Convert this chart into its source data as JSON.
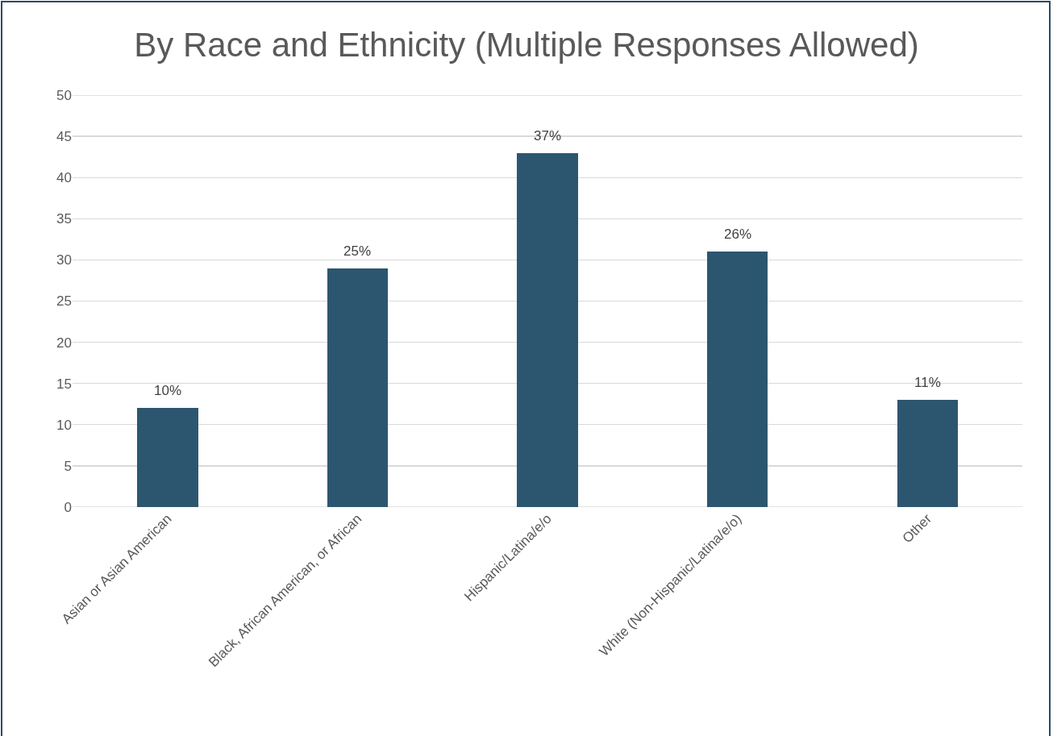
{
  "chart_data": {
    "type": "bar",
    "title": "By Race and Ethnicity (Multiple Responses Allowed)",
    "categories": [
      "Asian or Asian American",
      "Black, African American, or African",
      "Hispanic/Latina/e/o",
      "White (Non-Hispanic/Latina/e/o)",
      "Other"
    ],
    "values": [
      12,
      29,
      43,
      31,
      13
    ],
    "annotations": [
      {
        "text": "10%",
        "x": "Asian or Asian American",
        "y": 12
      },
      {
        "text": "25%",
        "x": "Black, African American, or African",
        "y": 29
      },
      {
        "text": "37%",
        "x": "Hispanic/Latina/e/o",
        "y": 43
      },
      {
        "text": "26%",
        "x": "White (Non-Hispanic/Latina/e/o)",
        "y": 31
      },
      {
        "text": "11%",
        "x": "Other",
        "y": 13
      }
    ],
    "color": "#2c5670",
    "ylim": [
      0,
      50
    ],
    "yticks": [
      0,
      5,
      10,
      15,
      20,
      25,
      30,
      35,
      40,
      45,
      50
    ],
    "grid": "y",
    "legend": false
  }
}
